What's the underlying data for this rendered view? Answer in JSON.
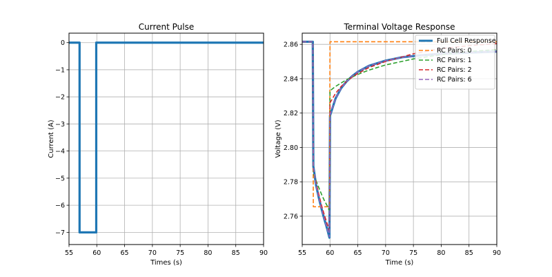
{
  "chart_data": [
    {
      "type": "line",
      "title": "Current Pulse",
      "xlabel": "Times (s)",
      "ylabel": "Current (A)",
      "xlim": [
        55,
        90
      ],
      "ylim": [
        -7.45,
        0.35
      ],
      "xticks": [
        55,
        60,
        65,
        70,
        75,
        80,
        85,
        90
      ],
      "yticks": [
        0,
        -1,
        -2,
        -3,
        -4,
        -5,
        -6,
        -7
      ],
      "xtick_labels": [
        "55",
        "60",
        "65",
        "70",
        "75",
        "80",
        "85",
        "90"
      ],
      "ytick_labels": [
        "0",
        "−1",
        "−2",
        "−3",
        "−4",
        "−5",
        "−6",
        "−7"
      ],
      "grid": true,
      "series": [
        {
          "color": "#1f77b4",
          "style": "solid",
          "x": [
            55,
            56.9,
            56.9,
            59.9,
            59.9,
            90
          ],
          "y": [
            0,
            0,
            -7,
            -7,
            0,
            0
          ]
        }
      ]
    },
    {
      "type": "line",
      "title": "Terminal Voltage Response",
      "xlabel": "Time (s)",
      "ylabel": "Voltage (V)",
      "xlim": [
        55,
        90
      ],
      "ylim": [
        2.7435,
        2.8665
      ],
      "xticks": [
        55,
        60,
        65,
        70,
        75,
        80,
        85,
        90
      ],
      "yticks": [
        2.76,
        2.78,
        2.8,
        2.82,
        2.84,
        2.86
      ],
      "xtick_labels": [
        "55",
        "60",
        "65",
        "70",
        "75",
        "80",
        "85",
        "90"
      ],
      "ytick_labels": [
        "2.76",
        "2.78",
        "2.80",
        "2.82",
        "2.84",
        "2.86"
      ],
      "grid": true,
      "legend": "top-right",
      "series": [
        {
          "name": "Full Cell Response",
          "color": "#1f77b4",
          "style": "solid",
          "x": [
            55,
            56.9,
            57.0,
            57.5,
            58.0,
            58.5,
            59.0,
            59.5,
            59.9,
            60.0,
            61,
            62,
            63,
            64,
            65,
            67,
            70,
            73,
            76,
            80,
            85,
            90
          ],
          "y": [
            2.8615,
            2.8615,
            2.789,
            2.778,
            2.7705,
            2.764,
            2.758,
            2.7525,
            2.7475,
            2.8185,
            2.8285,
            2.8345,
            2.8385,
            2.8415,
            2.844,
            2.8475,
            2.8505,
            2.8525,
            2.8535,
            2.8545,
            2.8552,
            2.8558
          ]
        },
        {
          "name": "RC Pairs: 0",
          "color": "#ff7f0e",
          "style": "dashed",
          "x": [
            55,
            56.9,
            57.0,
            59.9,
            60.0,
            90
          ],
          "y": [
            2.8615,
            2.8615,
            2.7655,
            2.7655,
            2.8615,
            2.8615
          ]
        },
        {
          "name": "RC Pairs: 1",
          "color": "#2ca02c",
          "style": "dashed",
          "x": [
            55,
            56.9,
            57.0,
            57.5,
            58.0,
            58.5,
            59.0,
            59.5,
            59.9,
            60.0,
            61,
            62,
            63,
            65,
            67,
            70,
            75,
            80,
            85,
            90
          ],
          "y": [
            2.8615,
            2.8615,
            2.785,
            2.7805,
            2.7765,
            2.7725,
            2.769,
            2.766,
            2.763,
            2.833,
            2.8355,
            2.8375,
            2.8395,
            2.8425,
            2.845,
            2.848,
            2.8515,
            2.854,
            2.8558,
            2.857
          ]
        },
        {
          "name": "RC Pairs: 2",
          "color": "#d62728",
          "style": "dashed",
          "x": [
            55,
            56.9,
            57.0,
            57.5,
            58.0,
            58.5,
            59.0,
            59.5,
            59.9,
            60.0,
            61,
            62,
            63,
            64,
            65,
            67,
            70,
            75,
            80,
            85,
            90
          ],
          "y": [
            2.8615,
            2.8615,
            2.7875,
            2.7795,
            2.7725,
            2.766,
            2.7605,
            2.7555,
            2.7515,
            2.826,
            2.8315,
            2.8355,
            2.8385,
            2.841,
            2.843,
            2.8465,
            2.85,
            2.8545,
            2.8575,
            2.8592,
            2.8605
          ]
        },
        {
          "name": "RC Pairs: 6",
          "color": "#9467bd",
          "style": "dashed",
          "x": [
            55,
            56.9,
            57.0,
            57.5,
            58.0,
            58.5,
            59.0,
            59.5,
            59.9,
            60.0,
            61,
            62,
            63,
            64,
            65,
            67,
            70,
            73,
            76,
            80,
            85,
            90
          ],
          "y": [
            2.8615,
            2.8615,
            2.789,
            2.778,
            2.7705,
            2.764,
            2.758,
            2.7525,
            2.748,
            2.819,
            2.8285,
            2.8345,
            2.8385,
            2.8415,
            2.844,
            2.8475,
            2.8505,
            2.8525,
            2.8535,
            2.8545,
            2.8552,
            2.8558
          ]
        }
      ]
    }
  ]
}
